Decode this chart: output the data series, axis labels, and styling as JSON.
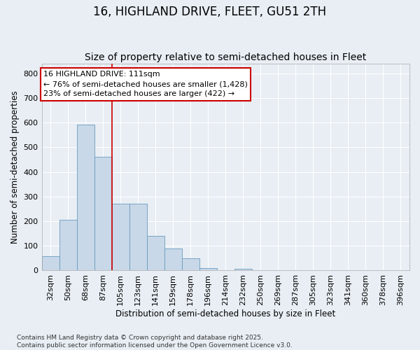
{
  "title": "16, HIGHLAND DRIVE, FLEET, GU51 2TH",
  "subtitle": "Size of property relative to semi-detached houses in Fleet",
  "xlabel": "Distribution of semi-detached houses by size in Fleet",
  "ylabel": "Number of semi-detached properties",
  "categories": [
    "32sqm",
    "50sqm",
    "68sqm",
    "87sqm",
    "105sqm",
    "123sqm",
    "141sqm",
    "159sqm",
    "178sqm",
    "196sqm",
    "214sqm",
    "232sqm",
    "250sqm",
    "269sqm",
    "287sqm",
    "305sqm",
    "323sqm",
    "341sqm",
    "360sqm",
    "378sqm",
    "396sqm"
  ],
  "values": [
    57,
    207,
    593,
    460,
    270,
    270,
    140,
    90,
    50,
    10,
    0,
    7,
    0,
    0,
    0,
    0,
    0,
    0,
    0,
    0,
    0
  ],
  "bar_color": "#c8d8e8",
  "bar_edge_color": "#6a9bbf",
  "bg_color": "#e8eef4",
  "grid_color": "#ffffff",
  "annotation_line1": "16 HIGHLAND DRIVE: 111sqm",
  "annotation_line2": "← 76% of semi-detached houses are smaller (1,428)",
  "annotation_line3": "23% of semi-detached houses are larger (422) →",
  "vline_position": 3.5,
  "vline_color": "#cc0000",
  "annotation_box_facecolor": "#ffffff",
  "annotation_box_edgecolor": "#cc0000",
  "footnote": "Contains HM Land Registry data © Crown copyright and database right 2025.\nContains public sector information licensed under the Open Government Licence v3.0.",
  "ylim_max": 840,
  "yticks": [
    0,
    100,
    200,
    300,
    400,
    500,
    600,
    700,
    800
  ],
  "title_fontsize": 12,
  "subtitle_fontsize": 10,
  "axis_label_fontsize": 8.5,
  "tick_fontsize": 8,
  "annotation_fontsize": 8,
  "footnote_fontsize": 6.5
}
